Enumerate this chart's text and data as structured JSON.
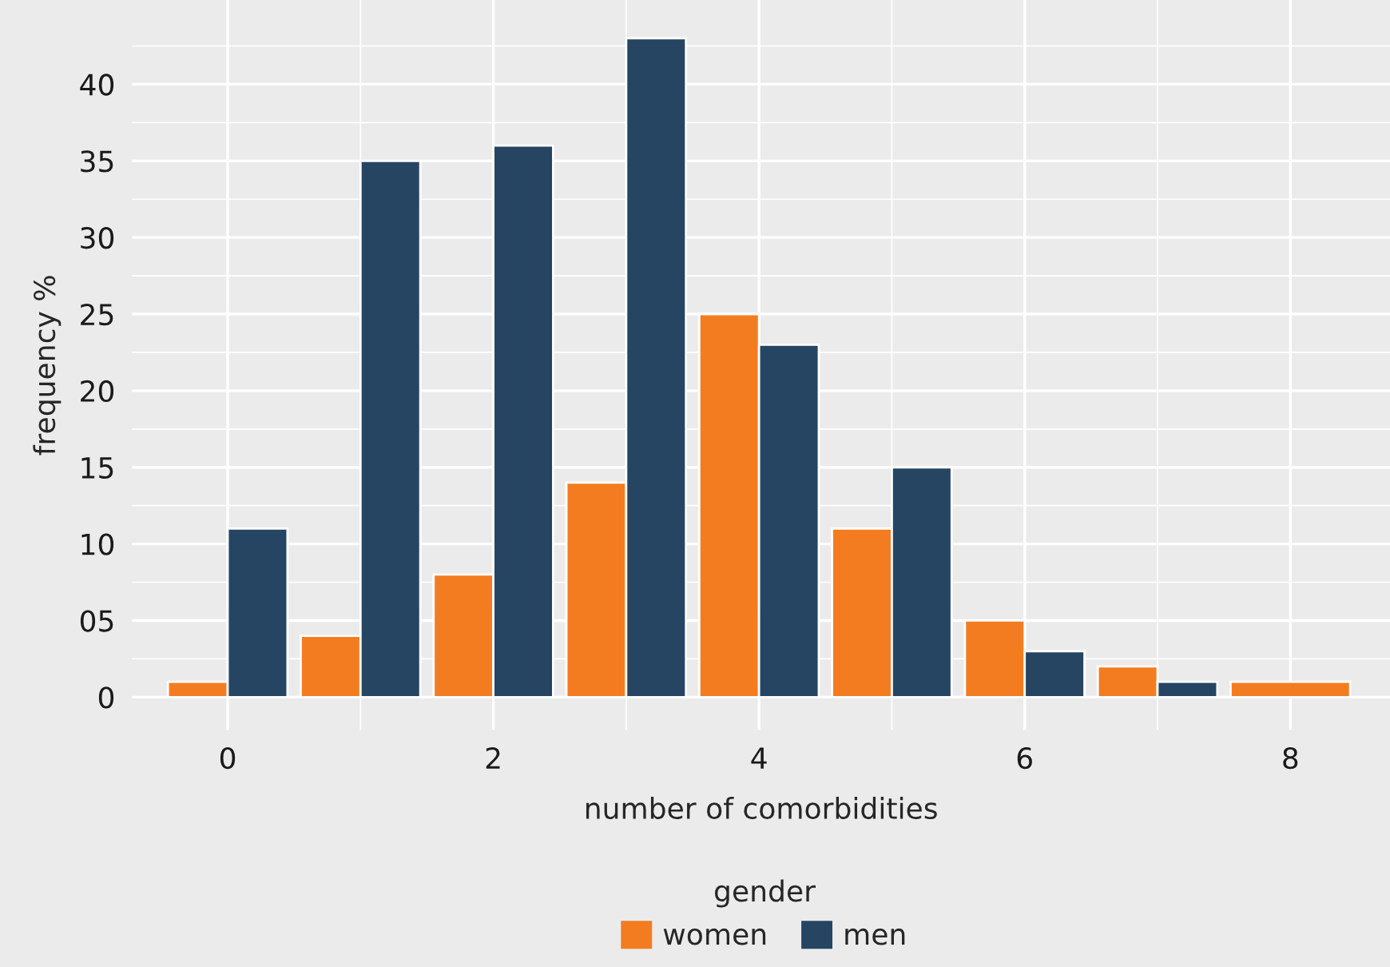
{
  "chart_data": {
    "type": "bar",
    "xlabel": "number of comorbidities",
    "ylabel": "frequency %",
    "legend_title": "gender",
    "x": [
      0,
      1,
      2,
      3,
      4,
      5,
      6,
      7,
      8
    ],
    "series": [
      {
        "name": "women",
        "color": "#f47c20",
        "values": [
          1,
          4,
          8,
          14,
          25,
          11,
          5,
          2,
          1
        ]
      },
      {
        "name": "men",
        "color": "#264563",
        "values": [
          11,
          35,
          36,
          43,
          23,
          15,
          3,
          1,
          null
        ]
      }
    ],
    "xlim": [
      -0.72,
      8.75
    ],
    "xticks": [
      0,
      2,
      4,
      6,
      8
    ],
    "ylim": [
      -2.15,
      45.5
    ],
    "yticks": [
      0,
      {
        "value": 5,
        "label": "05"
      },
      10,
      15,
      20,
      25,
      30,
      35,
      40
    ],
    "grid": true,
    "legend": "bottom"
  }
}
